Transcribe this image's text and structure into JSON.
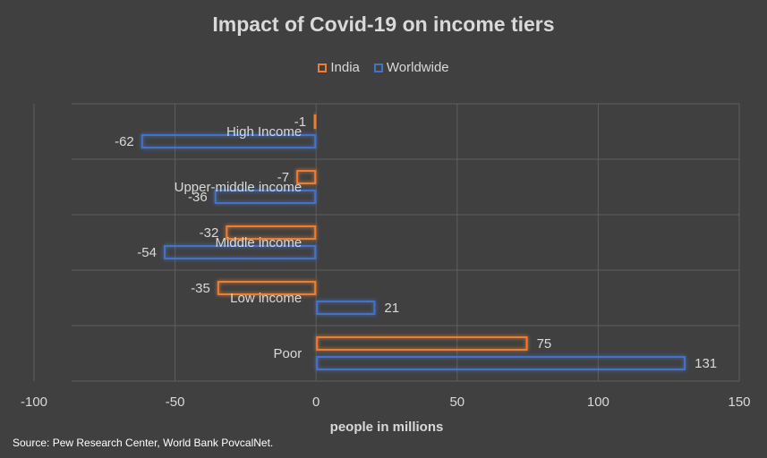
{
  "chart_data": {
    "type": "bar",
    "orientation": "horizontal",
    "title": "Impact of Covid-19 on income tiers",
    "xlabel": "people in millions",
    "ylabel": "",
    "categories": [
      "High Income",
      "Upper-middle income",
      "Middle income",
      "Low income",
      "Poor"
    ],
    "series": [
      {
        "name": "India",
        "color": "#ed7d31",
        "values": [
          -1,
          -7,
          -32,
          -35,
          75
        ]
      },
      {
        "name": "Worldwide",
        "color": "#4472c4",
        "values": [
          -62,
          -36,
          -54,
          21,
          131
        ]
      }
    ],
    "xlim": [
      -100,
      150
    ],
    "xticks": [
      -100,
      -50,
      0,
      50,
      100,
      150
    ],
    "grid": true,
    "legend_position": "top",
    "data_labels": true
  },
  "source_note": "Source: Pew Research Center, World Bank PovcalNet."
}
